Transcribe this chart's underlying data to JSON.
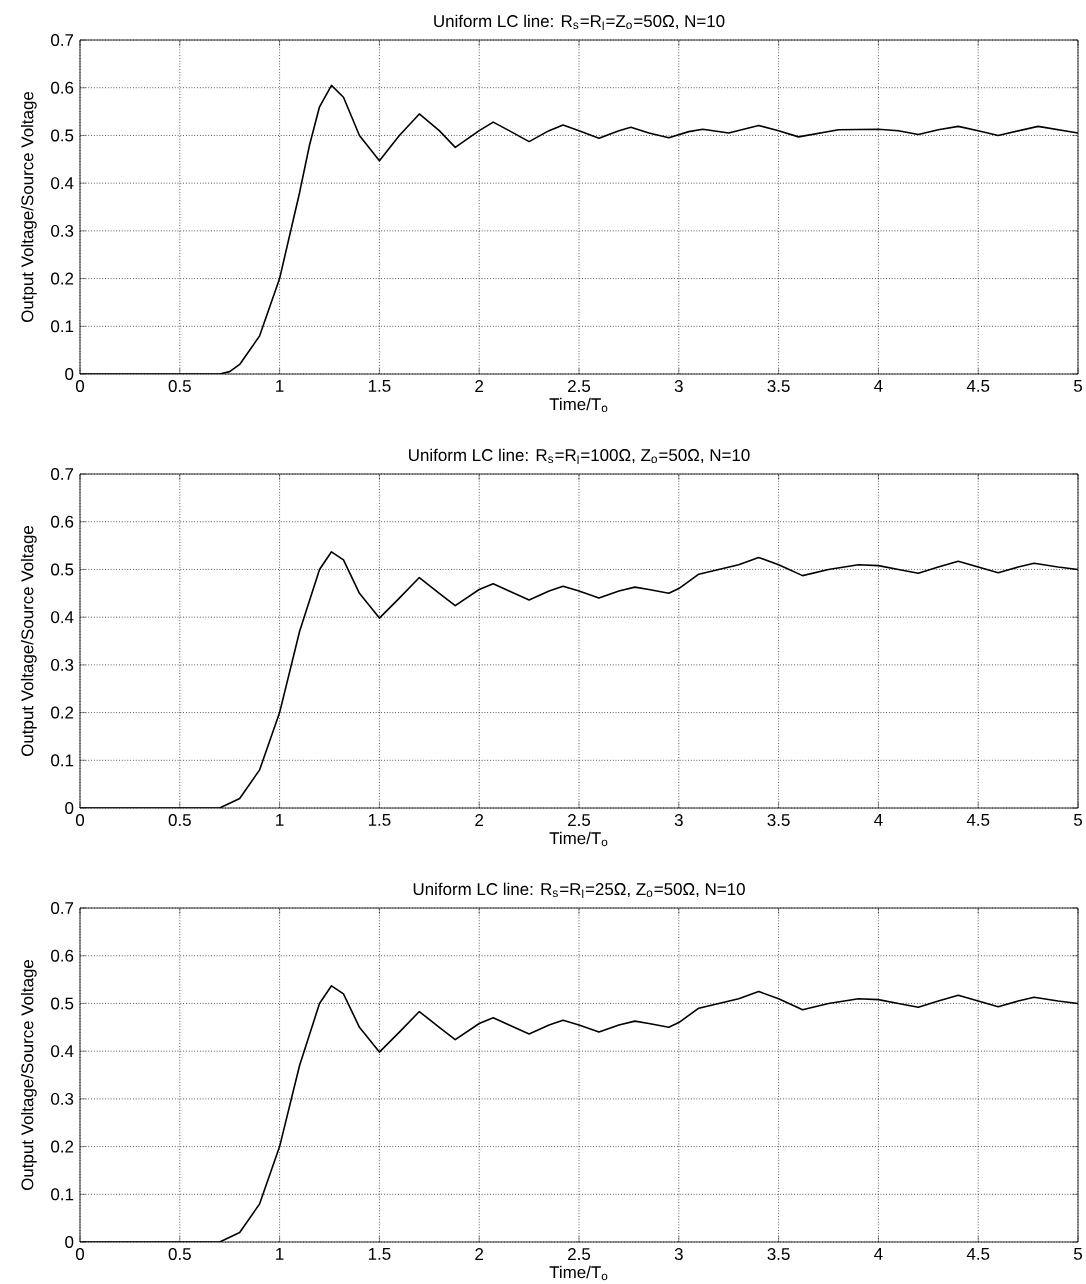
{
  "chart_data": [
    {
      "type": "line",
      "title": "Uniform LC line: R$_{s}$=R$_{l}$=Z$_{o}$=50Ω, N=10",
      "xlabel": "Time/T$_{o}$",
      "ylabel": "Output Voltage/Source Voltage",
      "xlim": [
        0,
        5
      ],
      "ylim": [
        0,
        0.7
      ],
      "xticks": [
        0,
        0.5,
        1,
        1.5,
        2,
        2.5,
        3,
        3.5,
        4,
        4.5,
        5
      ],
      "yticks": [
        0,
        0.1,
        0.2,
        0.3,
        0.4,
        0.5,
        0.6,
        0.7
      ],
      "grid": true,
      "line_style": "solid",
      "series": [
        {
          "color": "#000000",
          "x": [
            0,
            0.7,
            0.75,
            0.8,
            0.9,
            1.0,
            1.1,
            1.15,
            1.2,
            1.26,
            1.32,
            1.4,
            1.5,
            1.6,
            1.7,
            1.8,
            1.88,
            2.0,
            2.07,
            2.15,
            2.25,
            2.35,
            2.42,
            2.5,
            2.6,
            2.7,
            2.76,
            2.85,
            2.95,
            3.05,
            3.12,
            3.25,
            3.4,
            3.5,
            3.6,
            3.8,
            4.0,
            4.1,
            4.2,
            4.3,
            4.4,
            4.5,
            4.6,
            4.8,
            5.0
          ],
          "values": [
            0,
            0,
            0.005,
            0.02,
            0.08,
            0.2,
            0.38,
            0.48,
            0.56,
            0.605,
            0.58,
            0.5,
            0.447,
            0.5,
            0.545,
            0.51,
            0.475,
            0.51,
            0.528,
            0.51,
            0.487,
            0.51,
            0.522,
            0.51,
            0.494,
            0.51,
            0.517,
            0.505,
            0.495,
            0.508,
            0.513,
            0.505,
            0.521,
            0.51,
            0.497,
            0.512,
            0.513,
            0.51,
            0.502,
            0.512,
            0.519,
            0.51,
            0.5,
            0.519,
            0.505
          ]
        }
      ]
    },
    {
      "type": "line",
      "title": "Uniform LC line: R$_{s}$=R$_{l}$=100Ω, Z$_{o}$=50Ω, N=10",
      "xlabel": "Time/T$_{o}$",
      "ylabel": "Output Voltage/Source Voltage",
      "xlim": [
        0,
        5
      ],
      "ylim": [
        0,
        0.7
      ],
      "xticks": [
        0,
        0.5,
        1,
        1.5,
        2,
        2.5,
        3,
        3.5,
        4,
        4.5,
        5
      ],
      "yticks": [
        0,
        0.1,
        0.2,
        0.3,
        0.4,
        0.5,
        0.6,
        0.7
      ],
      "grid": true,
      "line_style": "solid",
      "series": [
        {
          "color": "#000000",
          "x": [
            0,
            0.7,
            0.8,
            0.9,
            1.0,
            1.1,
            1.2,
            1.26,
            1.32,
            1.4,
            1.5,
            1.6,
            1.7,
            1.8,
            1.88,
            2.0,
            2.07,
            2.15,
            2.25,
            2.35,
            2.42,
            2.5,
            2.6,
            2.7,
            2.78,
            2.85,
            2.95,
            3.0,
            3.1,
            3.2,
            3.3,
            3.4,
            3.5,
            3.62,
            3.75,
            3.9,
            4.0,
            4.1,
            4.2,
            4.3,
            4.4,
            4.5,
            4.6,
            4.7,
            4.78,
            4.9,
            5.0
          ],
          "values": [
            0,
            0,
            0.02,
            0.08,
            0.2,
            0.37,
            0.5,
            0.537,
            0.52,
            0.45,
            0.398,
            0.44,
            0.483,
            0.45,
            0.424,
            0.458,
            0.47,
            0.455,
            0.436,
            0.455,
            0.465,
            0.455,
            0.44,
            0.455,
            0.463,
            0.458,
            0.45,
            0.46,
            0.49,
            0.5,
            0.51,
            0.525,
            0.51,
            0.487,
            0.5,
            0.51,
            0.508,
            0.5,
            0.492,
            0.505,
            0.517,
            0.505,
            0.493,
            0.505,
            0.513,
            0.505,
            0.5
          ]
        }
      ]
    },
    {
      "type": "line",
      "title": "Uniform LC line: R$_{s}$=R$_{l}$=25Ω, Z$_{o}$=50Ω, N=10",
      "xlabel": "Time/T$_{o}$",
      "ylabel": "Output Voltage/Source Voltage",
      "xlim": [
        0,
        5
      ],
      "ylim": [
        0,
        0.7
      ],
      "xticks": [
        0,
        0.5,
        1,
        1.5,
        2,
        2.5,
        3,
        3.5,
        4,
        4.5,
        5
      ],
      "yticks": [
        0,
        0.1,
        0.2,
        0.3,
        0.4,
        0.5,
        0.6,
        0.7
      ],
      "grid": true,
      "line_style": "solid",
      "series": [
        {
          "color": "#000000",
          "x": [
            0,
            0.7,
            0.8,
            0.9,
            1.0,
            1.1,
            1.2,
            1.26,
            1.32,
            1.4,
            1.5,
            1.6,
            1.7,
            1.8,
            1.88,
            2.0,
            2.07,
            2.15,
            2.25,
            2.35,
            2.42,
            2.5,
            2.6,
            2.7,
            2.78,
            2.85,
            2.95,
            3.0,
            3.1,
            3.2,
            3.3,
            3.4,
            3.5,
            3.62,
            3.75,
            3.9,
            4.0,
            4.1,
            4.2,
            4.3,
            4.4,
            4.5,
            4.6,
            4.7,
            4.78,
            4.9,
            5.0
          ],
          "values": [
            0,
            0,
            0.02,
            0.08,
            0.2,
            0.37,
            0.5,
            0.537,
            0.52,
            0.45,
            0.398,
            0.44,
            0.483,
            0.45,
            0.424,
            0.458,
            0.47,
            0.455,
            0.436,
            0.455,
            0.465,
            0.455,
            0.44,
            0.455,
            0.463,
            0.458,
            0.45,
            0.46,
            0.49,
            0.5,
            0.51,
            0.525,
            0.51,
            0.487,
            0.5,
            0.51,
            0.508,
            0.5,
            0.492,
            0.505,
            0.517,
            0.505,
            0.493,
            0.505,
            0.513,
            0.505,
            0.5
          ]
        }
      ]
    }
  ]
}
